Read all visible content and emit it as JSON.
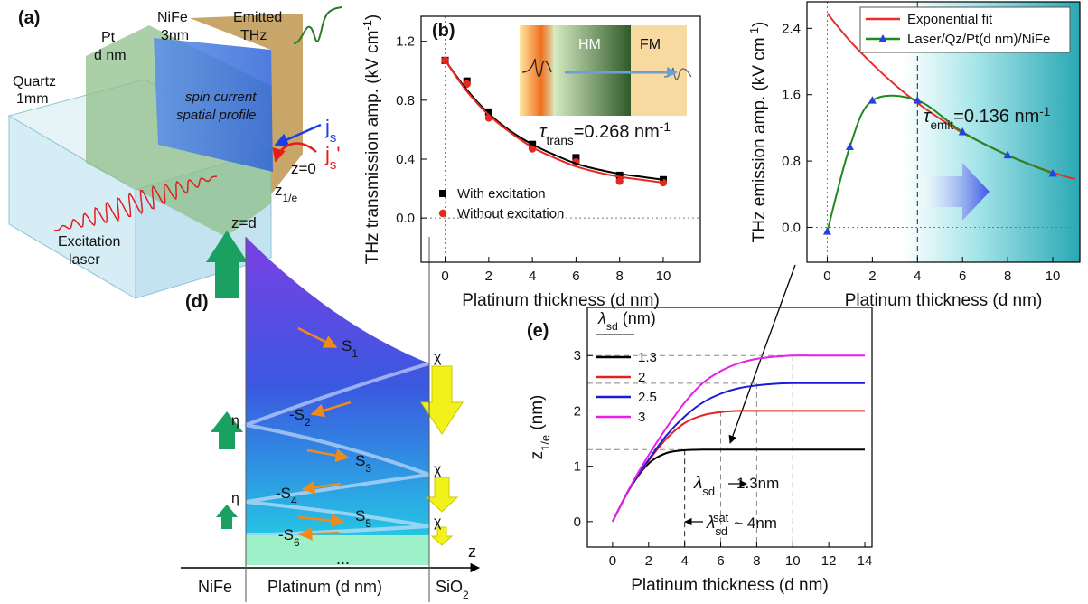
{
  "panel_a": {
    "label": "(a)",
    "quartz": [
      "Quartz",
      "1mm"
    ],
    "pt": [
      "Pt",
      "d nm"
    ],
    "nife": [
      "NiFe",
      "3nm"
    ],
    "emitted": [
      "Emitted",
      "THz"
    ],
    "profile": [
      "spin current",
      "spatial profile"
    ],
    "js": [
      "j",
      "s"
    ],
    "js_prime": [
      "j",
      "s",
      "'"
    ],
    "z0": "z=0",
    "z1e": [
      "z",
      "1/e"
    ],
    "zd": "z=d",
    "laser": [
      "Excitation",
      "laser"
    ]
  },
  "panel_d": {
    "label": "(d)",
    "spins": [
      [
        "S",
        "1"
      ],
      [
        "-S",
        "2"
      ],
      [
        "S",
        "3"
      ],
      [
        "-S",
        "4"
      ],
      [
        "S",
        "5"
      ],
      [
        "-S",
        "6"
      ]
    ],
    "chi": [
      "χ",
      "χ",
      "χ"
    ],
    "eta": [
      "η",
      "η"
    ],
    "ellipsis": "...",
    "axis": "z",
    "regions": [
      "NiFe",
      "Platinum (d nm)",
      [
        "SiO",
        "2"
      ]
    ]
  },
  "chart_data": [
    {
      "type": "scatter",
      "panel_label": "(b)",
      "x_label": "Platinum thickness (d nm)",
      "y_label": [
        "THz transmission amp. (kV cm",
        "-1",
        ")"
      ],
      "xlim": [
        -1.1,
        11.7
      ],
      "ylim": [
        -0.3,
        1.37
      ],
      "xticks": [
        0,
        2,
        4,
        6,
        8,
        10
      ],
      "yticks": [
        {
          "value": 0,
          "label": "0.0"
        },
        0.4,
        0.8,
        1.2
      ],
      "hlines": [
        0
      ],
      "vlines": [
        0
      ],
      "legend": "lower left",
      "series": [
        {
          "name": "With excitation",
          "color": "#000000",
          "marker": "square",
          "line": false,
          "x": [
            0,
            1,
            2,
            4,
            6,
            8,
            10
          ],
          "values": [
            1.07,
            0.93,
            0.72,
            0.5,
            0.41,
            0.29,
            0.26
          ]
        },
        {
          "name": "Without excitation",
          "color": "#e8281f",
          "marker": "circle",
          "line": false,
          "x": [
            0,
            1,
            2,
            4,
            6,
            8,
            10
          ],
          "values": [
            1.07,
            0.91,
            0.68,
            0.47,
            0.38,
            0.25,
            0.24
          ]
        },
        {
          "color": "#000000",
          "line": true,
          "x": [
            0,
            1,
            2,
            3,
            4,
            5,
            6,
            7,
            8,
            9,
            10
          ],
          "values": [
            1.07,
            0.87,
            0.71,
            0.59,
            0.5,
            0.43,
            0.37,
            0.33,
            0.3,
            0.28,
            0.26
          ]
        },
        {
          "color": "#e8281f",
          "line": true,
          "x": [
            0,
            1,
            2,
            3,
            4,
            5,
            6,
            7,
            8,
            9,
            10
          ],
          "values": [
            1.07,
            0.86,
            0.7,
            0.58,
            0.48,
            0.41,
            0.35,
            0.31,
            0.28,
            0.26,
            0.24
          ]
        }
      ],
      "inset": {
        "labels": [
          "HM",
          "FM"
        ],
        "annotation": [
          "τ",
          "trans",
          "=0.268 nm",
          "-1"
        ]
      }
    },
    {
      "type": "line",
      "x_label": "Platinum thickness (d nm)",
      "y_label": [
        "THz emission amp. (kV cm",
        "-1",
        ")"
      ],
      "xlim": [
        -0.9,
        11.2
      ],
      "ylim": [
        -0.42,
        2.72
      ],
      "xticks": [
        0,
        2,
        4,
        6,
        8,
        10
      ],
      "yticks": [
        {
          "value": 0,
          "label": "0.0"
        },
        0.8,
        1.6,
        2.4
      ],
      "hlines": [
        0
      ],
      "vlines": [
        0,
        4
      ],
      "legend": "upper right",
      "legend_frame": true,
      "series": [
        {
          "name": "Exponential fit",
          "color": "#ee2b2b",
          "line": true,
          "x": [
            0,
            1,
            2,
            3,
            4,
            5,
            6,
            7,
            8,
            9,
            10,
            11
          ],
          "values": [
            2.58,
            2.25,
            1.97,
            1.72,
            1.5,
            1.31,
            1.14,
            1.0,
            0.87,
            0.76,
            0.66,
            0.58
          ]
        },
        {
          "name": "Laser/Qz/Pt(d nm)/NiFe",
          "color": "#1f8a1f",
          "marker": "triangle",
          "marker_color": "#2a3ee8",
          "line": true,
          "x": [
            0,
            1,
            2,
            4,
            6,
            8,
            10
          ],
          "values": [
            -0.05,
            0.97,
            1.53,
            1.53,
            1.15,
            0.87,
            0.65
          ]
        }
      ],
      "annotation": [
        "τ",
        "emit",
        "=0.136 nm",
        "-1"
      ]
    },
    {
      "type": "line",
      "panel_label": "(e)",
      "x_label": "Platinum thickness (d nm)",
      "y_label": [
        "z",
        "1/e",
        " (nm)"
      ],
      "xlim": [
        -1.4,
        14.4
      ],
      "ylim": [
        -0.46,
        3.87
      ],
      "xticks": [
        0,
        2,
        4,
        6,
        8,
        10,
        12,
        14
      ],
      "yticks": [
        0,
        1,
        2,
        3
      ],
      "legend": "upper left",
      "legend_title": [
        "λ",
        "sd",
        " (nm)"
      ],
      "guides": {
        "x": [
          4,
          6,
          8,
          10
        ],
        "y": [
          1.3,
          2,
          2.5,
          3
        ]
      },
      "series": [
        {
          "name": "1.3",
          "color": "#000000",
          "line": true,
          "x": [
            0,
            1,
            2,
            3,
            4,
            5,
            6,
            7,
            8,
            9,
            10,
            11,
            12,
            13,
            14
          ],
          "values": [
            0,
            0.62,
            1.05,
            1.24,
            1.29,
            1.3,
            1.3,
            1.3,
            1.3,
            1.3,
            1.3,
            1.3,
            1.3,
            1.3,
            1.3
          ]
        },
        {
          "name": "2",
          "color": "#e8201c",
          "line": true,
          "x": [
            0,
            1,
            2,
            3,
            4,
            5,
            6,
            7,
            8,
            9,
            10,
            11,
            12,
            13,
            14
          ],
          "values": [
            0,
            0.63,
            1.1,
            1.5,
            1.78,
            1.92,
            1.98,
            2,
            2,
            2,
            2,
            2,
            2,
            2,
            2
          ]
        },
        {
          "name": "2.5",
          "color": "#1a1ad6",
          "line": true,
          "x": [
            0,
            1,
            2,
            3,
            4,
            5,
            6,
            7,
            8,
            9,
            10,
            11,
            12,
            13,
            14
          ],
          "values": [
            0,
            0.63,
            1.12,
            1.56,
            1.9,
            2.15,
            2.31,
            2.41,
            2.46,
            2.49,
            2.5,
            2.5,
            2.5,
            2.5,
            2.5
          ]
        },
        {
          "name": "3",
          "color": "#e81ee8",
          "line": true,
          "x": [
            0,
            1,
            2,
            3,
            4,
            5,
            6,
            7,
            8,
            9,
            10,
            11,
            12,
            13,
            14
          ],
          "values": [
            0,
            0.64,
            1.2,
            1.7,
            2.15,
            2.5,
            2.72,
            2.86,
            2.94,
            2.98,
            3,
            3,
            3,
            3,
            3
          ]
        }
      ],
      "annotations": [
        [
          "λ",
          "sd",
          "1.3nm"
        ],
        [
          "λ",
          "sd",
          "sat",
          "~ 4nm"
        ]
      ]
    }
  ]
}
